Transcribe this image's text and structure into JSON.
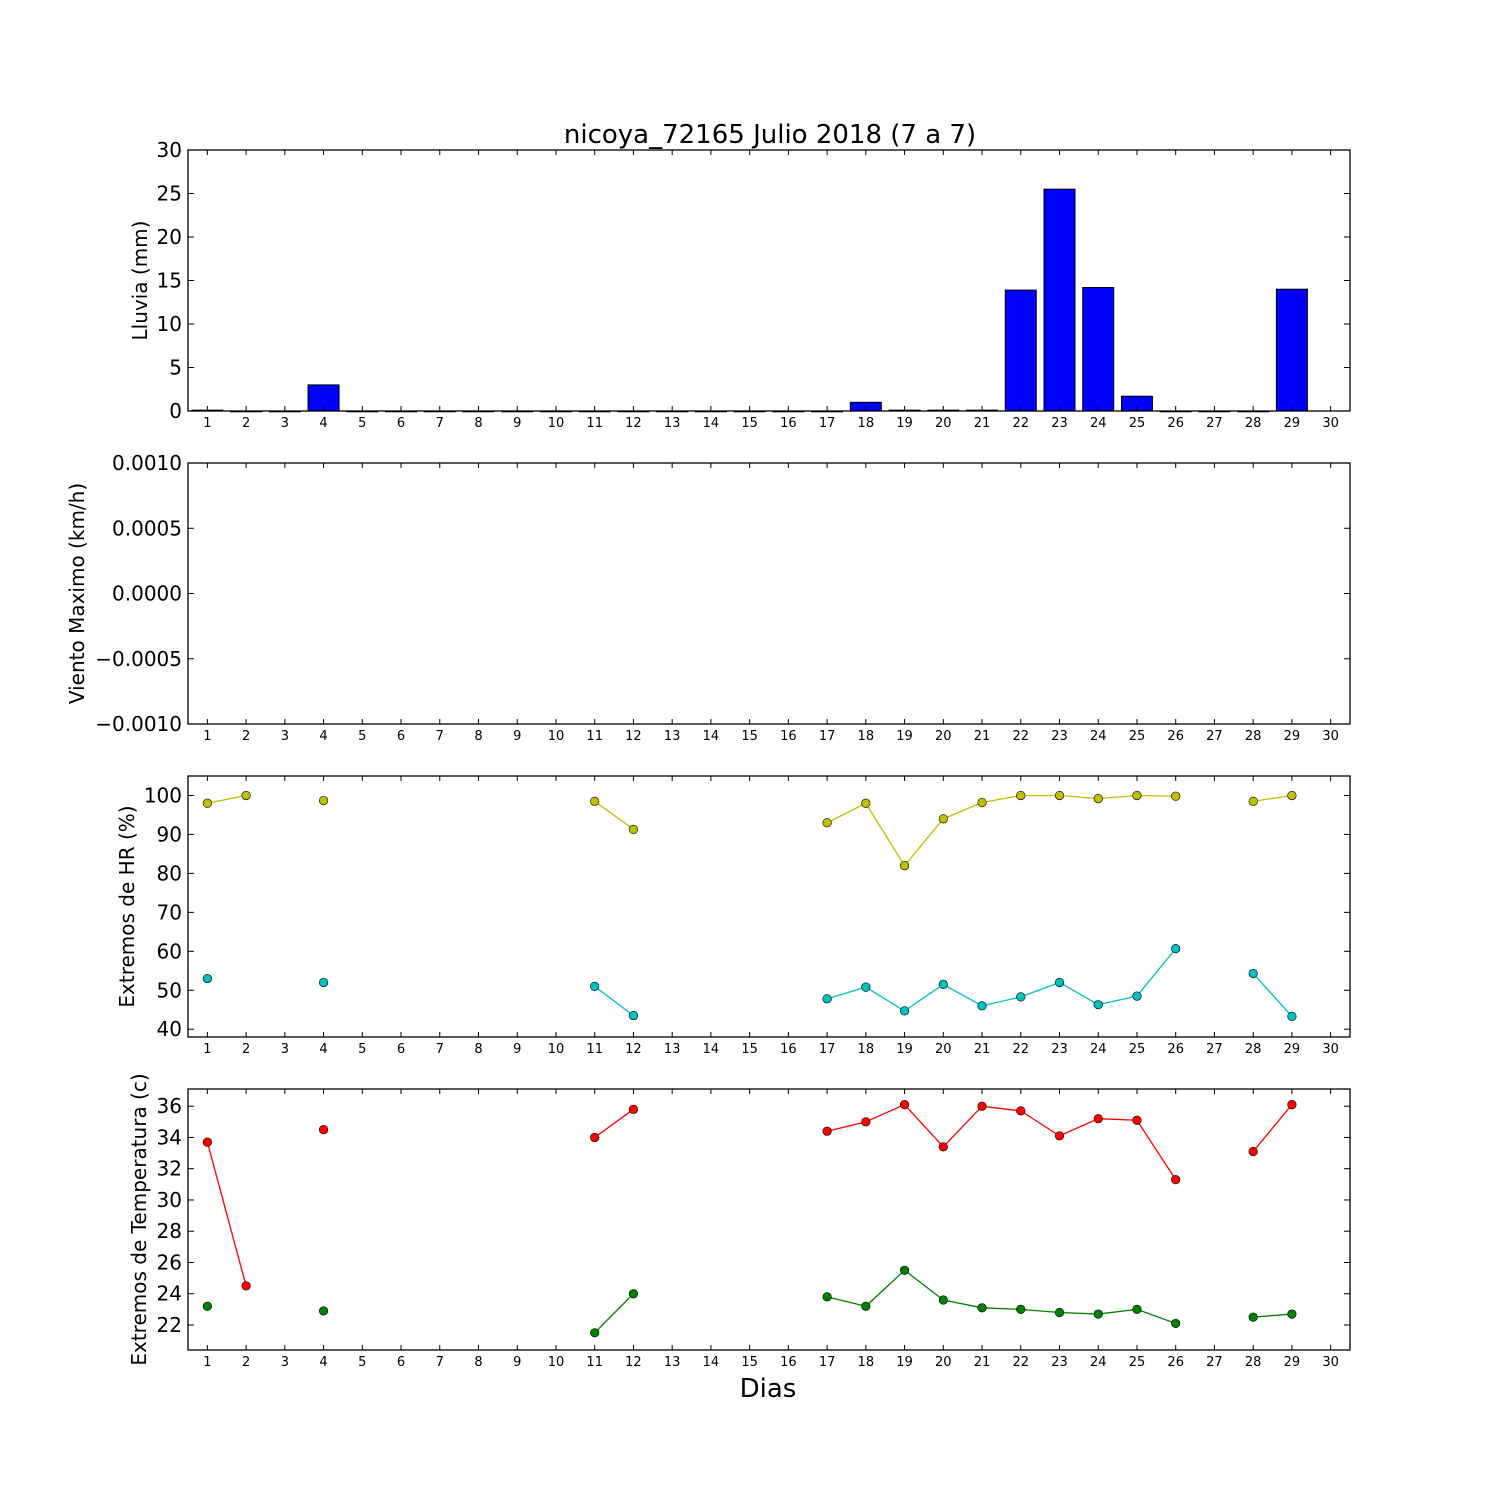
{
  "chart_data": [
    {
      "type": "bar",
      "title": "nicoya_72165 Julio 2018  (7 a 7)",
      "ylabel": "Lluvia (mm)",
      "xlabel": "",
      "ylim": [
        0,
        30
      ],
      "yticks": [
        "0",
        "5",
        "10",
        "15",
        "20",
        "25",
        "30"
      ],
      "xticks": [
        "1",
        "2",
        "3",
        "4",
        "5",
        "6",
        "7",
        "8",
        "9",
        "10",
        "11",
        "12",
        "13",
        "14",
        "15",
        "16",
        "17",
        "18",
        "19",
        "20",
        "21",
        "22",
        "23",
        "24",
        "25",
        "26",
        "27",
        "28",
        "29",
        "30"
      ],
      "series": [
        {
          "color": "#0000ff",
          "x": [
            1,
            2,
            3,
            4,
            5,
            6,
            7,
            8,
            9,
            10,
            11,
            12,
            13,
            14,
            15,
            16,
            17,
            18,
            19,
            20,
            21,
            22,
            23,
            24,
            25,
            26,
            27,
            28,
            29
          ],
          "values": [
            0.1,
            0,
            0,
            3,
            0,
            0,
            0,
            0,
            0,
            0,
            0,
            0,
            0,
            0,
            0,
            0,
            0,
            1,
            0.1,
            0.1,
            0.1,
            13.9,
            25.5,
            14.2,
            1.7,
            0,
            0,
            0,
            14
          ]
        }
      ]
    },
    {
      "type": "line",
      "title": "",
      "ylabel": "Viento Maximo (km/h)",
      "xlabel": "",
      "ylim": [
        -0.001,
        0.001
      ],
      "yticks": [
        "−0.0010",
        "−0.0005",
        "0.0000",
        "0.0005",
        "0.0010"
      ],
      "xticks": [
        "1",
        "2",
        "3",
        "4",
        "5",
        "6",
        "7",
        "8",
        "9",
        "10",
        "11",
        "12",
        "13",
        "14",
        "15",
        "16",
        "17",
        "18",
        "19",
        "20",
        "21",
        "22",
        "23",
        "24",
        "25",
        "26",
        "27",
        "28",
        "29",
        "30"
      ],
      "series": []
    },
    {
      "type": "line",
      "title": "",
      "ylabel": "Extremos de HR (%)",
      "xlabel": "",
      "ylim": [
        38,
        105
      ],
      "yticks": [
        "40",
        "50",
        "60",
        "70",
        "80",
        "90",
        "100"
      ],
      "xticks": [
        "1",
        "2",
        "3",
        "4",
        "5",
        "6",
        "7",
        "8",
        "9",
        "10",
        "11",
        "12",
        "13",
        "14",
        "15",
        "16",
        "17",
        "18",
        "19",
        "20",
        "21",
        "22",
        "23",
        "24",
        "25",
        "26",
        "27",
        "28",
        "29",
        "30"
      ],
      "series": [
        {
          "color": "#bfbf00",
          "x": [
            1,
            2,
            4,
            11,
            12,
            17,
            18,
            19,
            20,
            21,
            22,
            23,
            24,
            25,
            26,
            28,
            29
          ],
          "values": [
            98,
            100,
            98.7,
            98.5,
            91.3,
            93,
            98,
            82,
            94,
            98.2,
            100,
            100,
            99.2,
            100,
            99.8,
            98.5,
            100
          ]
        },
        {
          "color": "#00bfbf",
          "x": [
            1,
            2,
            4,
            11,
            12,
            17,
            18,
            19,
            20,
            21,
            22,
            23,
            24,
            25,
            26,
            28,
            29
          ],
          "values": [
            53,
            null,
            52,
            51,
            43.5,
            47.8,
            50.8,
            44.7,
            51.5,
            46,
            48.3,
            52,
            46.3,
            48.5,
            60.7,
            54.3,
            43.3
          ]
        }
      ]
    },
    {
      "type": "line",
      "title": "",
      "ylabel": "Extremos de Temperatura (c)",
      "xlabel": "Dias",
      "ylim": [
        20.4,
        37.1
      ],
      "yticks": [
        "22",
        "24",
        "26",
        "28",
        "30",
        "32",
        "34",
        "36"
      ],
      "xticks": [
        "1",
        "2",
        "3",
        "4",
        "5",
        "6",
        "7",
        "8",
        "9",
        "10",
        "11",
        "12",
        "13",
        "14",
        "15",
        "16",
        "17",
        "18",
        "19",
        "20",
        "21",
        "22",
        "23",
        "24",
        "25",
        "26",
        "27",
        "28",
        "29",
        "30"
      ],
      "series": [
        {
          "color": "#ff0000",
          "x": [
            1,
            2,
            4,
            11,
            12,
            17,
            18,
            19,
            20,
            21,
            22,
            23,
            24,
            25,
            26,
            28,
            29
          ],
          "values": [
            33.7,
            24.5,
            34.5,
            34,
            35.8,
            34.4,
            35,
            36.1,
            33.4,
            36,
            35.7,
            34.1,
            35.2,
            35.1,
            31.3,
            33.1,
            36.1
          ]
        },
        {
          "color": "#008000",
          "x": [
            1,
            2,
            4,
            11,
            12,
            17,
            18,
            19,
            20,
            21,
            22,
            23,
            24,
            25,
            26,
            28,
            29
          ],
          "values": [
            23.2,
            null,
            22.9,
            21.5,
            24,
            23.8,
            23.2,
            25.5,
            23.6,
            23.1,
            23,
            22.8,
            22.7,
            23,
            22.1,
            22.5,
            22.7
          ]
        }
      ]
    }
  ]
}
